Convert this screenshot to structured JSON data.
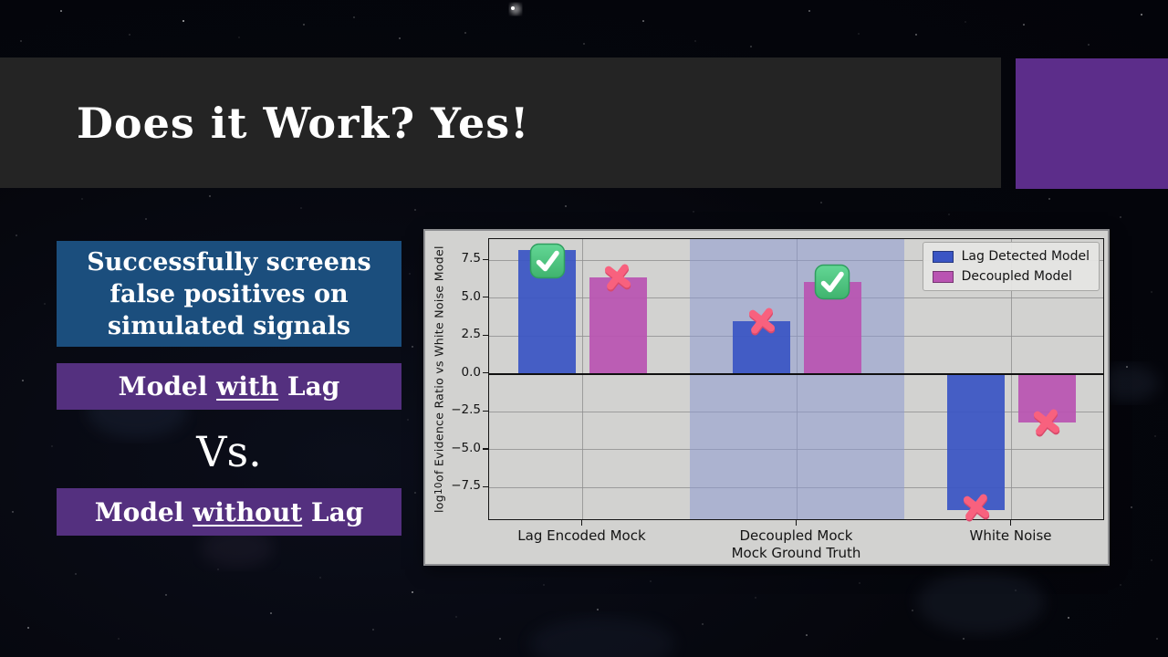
{
  "slide": {
    "title": "Does it Work? Yes!",
    "callout": {
      "lines": [
        "Successfully screens",
        "false positives on",
        "simulated signals"
      ]
    },
    "model_with": {
      "before": "Model ",
      "underline": "with",
      "after": " Lag"
    },
    "vs": "Vs.",
    "model_without": {
      "before": "Model ",
      "underline": "without",
      "after": " Lag"
    }
  },
  "colors": {
    "title_bar": "#242424",
    "accent_rect": "#5c2d8a",
    "callout_blue": "#1b4e7d",
    "model_box_purple": "#54307f",
    "figure_bg": "#d2d2d0",
    "bar_blue": "#3a55c4",
    "bar_magenta": "#b954b2",
    "band": "#8c99cf",
    "check_green": "#4ec77e",
    "cross_pink": "#f8617e"
  },
  "chart_data": {
    "type": "bar",
    "categories": [
      "Lag Encoded Mock",
      "Decoupled Mock",
      "White Noise"
    ],
    "series": [
      {
        "name": "Lag Detected Model",
        "color": "#3a55c4",
        "values": [
          8.2,
          3.5,
          -9.0
        ]
      },
      {
        "name": "Decoupled Model",
        "color": "#b954b2",
        "values": [
          6.4,
          6.1,
          -3.2
        ]
      }
    ],
    "xlabel": "Mock Ground Truth",
    "ylabel": "log10 of Evidence Ratio vs White Noise Model",
    "ylabel_parts": {
      "pre": "log",
      "sub": "10",
      "post": " of Evidence Ratio vs White Noise Model"
    },
    "yticks": [
      7.5,
      5.0,
      2.5,
      0.0,
      -2.5,
      -5.0,
      -7.5
    ],
    "ylim": [
      -9.7,
      8.9
    ],
    "xlim": [
      -0.436,
      2.436
    ],
    "grid": true,
    "zero_line": true,
    "highlight_band": {
      "x_from": 0.5,
      "x_to": 1.5,
      "color": "#8c99cf",
      "opacity": 0.55
    },
    "legend": {
      "position": "upper right",
      "entries": [
        "Lag Detected Model",
        "Decoupled Model"
      ]
    },
    "annotations": [
      {
        "mark": "check",
        "category": "Lag Encoded Mock",
        "series": "Lag Detected Model",
        "dy": 12
      },
      {
        "mark": "cross",
        "category": "Lag Encoded Mock",
        "series": "Decoupled Model",
        "dy": 0
      },
      {
        "mark": "cross",
        "category": "Decoupled Mock",
        "series": "Lag Detected Model",
        "dy": 0
      },
      {
        "mark": "check",
        "category": "Decoupled Mock",
        "series": "Decoupled Model",
        "dy": 0
      },
      {
        "mark": "cross",
        "category": "White Noise",
        "series": "Lag Detected Model",
        "dy": -3
      },
      {
        "mark": "cross",
        "category": "White Noise",
        "series": "Decoupled Model",
        "dy": 0
      }
    ]
  }
}
